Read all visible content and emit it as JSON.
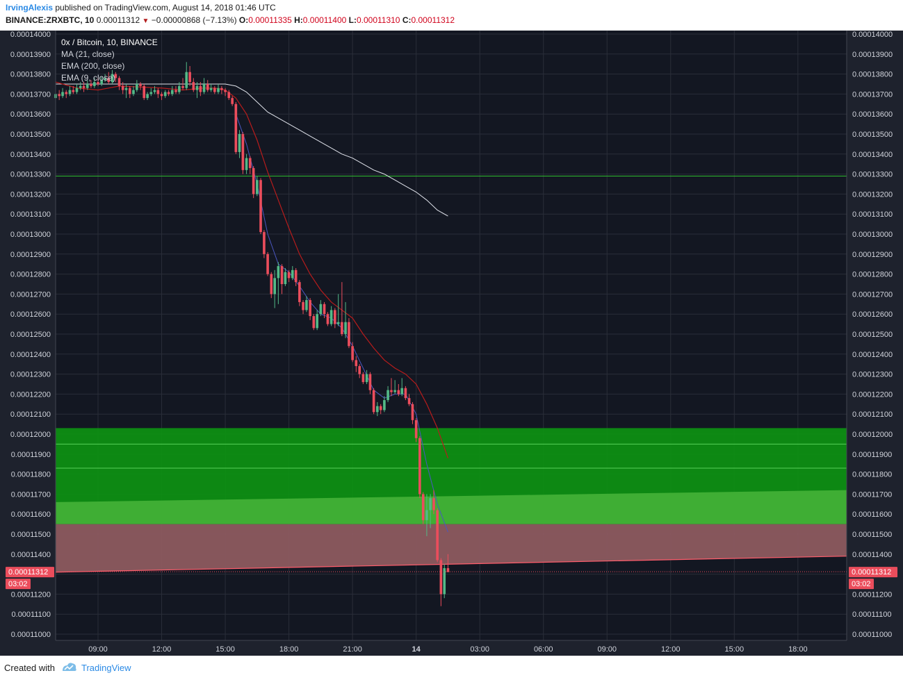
{
  "header": {
    "author": "IrvingAlexis",
    "published_text": "published on TradingView.com, August 14, 2018 01:46 UTC",
    "symbol": "BINANCE:ZRXBTC, 10",
    "last": "0.00011312",
    "change": "−0.00000868 (−7.13%)",
    "o_label": "O:",
    "o_value": "0.00011335",
    "h_label": "H:",
    "h_value": "0.00011400",
    "l_label": "L:",
    "l_value": "0.00011310",
    "c_label": "C:",
    "c_value": "0.00011312"
  },
  "legend": {
    "title": "0x / Bitcoin, 10, BINANCE",
    "ma": "MA (21, close)",
    "ema200": "EMA (200, close)",
    "ema9": "EMA (9, close)"
  },
  "price_tag": {
    "value": "0.00011312",
    "countdown": "03:02"
  },
  "footer": {
    "created": "Created with",
    "brand": "TradingView"
  },
  "colors": {
    "background": "#1e222d",
    "up": "#53b987",
    "down": "#eb4d5c",
    "ma21": "#b71c1c",
    "ema200": "#e0e3eb",
    "ema9": "#4a57c0",
    "green_zone": "#0d9312",
    "green_zone_light": "#42b036",
    "red_zone": "#8c5a5f",
    "h_line": "#2fbf2f"
  },
  "chart_data": {
    "type": "candlestick",
    "ylim": [
      0.00011,
      0.00014
    ],
    "y_ticks": [
      "0.00014000",
      "0.00013900",
      "0.00013800",
      "0.00013700",
      "0.00013600",
      "0.00013500",
      "0.00013400",
      "0.00013300",
      "0.00013200",
      "0.00013100",
      "0.00013000",
      "0.00012900",
      "0.00012800",
      "0.00012700",
      "0.00012600",
      "0.00012500",
      "0.00012400",
      "0.00012300",
      "0.00012200",
      "0.00012100",
      "0.00012000",
      "0.00011900",
      "0.00011800",
      "0.00011700",
      "0.00011600",
      "0.00011500",
      "0.00011400",
      "0.00011300",
      "0.00011200",
      "0.00011100",
      "0.00011000"
    ],
    "x_ticks": [
      "09:00",
      "12:00",
      "15:00",
      "18:00",
      "21:00",
      "14",
      "03:00",
      "06:00",
      "09:00",
      "12:00",
      "15:00",
      "18:00"
    ],
    "x_range_hours": [
      7,
      44.3
    ],
    "candles": [
      [
        7.0,
        0.0001368,
        0.000137,
        0.0001372,
        0.0001367
      ],
      [
        7.17,
        0.000137,
        0.0001369,
        0.0001372,
        0.0001367
      ],
      [
        7.33,
        0.0001369,
        0.0001371,
        0.0001373,
        0.0001368
      ],
      [
        7.5,
        0.0001371,
        0.000137,
        0.0001372,
        0.0001368
      ],
      [
        7.67,
        0.000137,
        0.0001372,
        0.0001374,
        0.0001369
      ],
      [
        7.83,
        0.0001372,
        0.0001371,
        0.0001374,
        0.000137
      ],
      [
        8.0,
        0.0001371,
        0.0001373,
        0.0001375,
        0.000137
      ],
      [
        8.17,
        0.0001373,
        0.0001374,
        0.0001376,
        0.0001372
      ],
      [
        8.33,
        0.0001374,
        0.0001373,
        0.0001376,
        0.0001371
      ],
      [
        8.5,
        0.0001373,
        0.0001375,
        0.0001377,
        0.0001372
      ],
      [
        8.67,
        0.0001375,
        0.0001374,
        0.0001377,
        0.0001373
      ],
      [
        8.83,
        0.0001374,
        0.0001376,
        0.0001378,
        0.0001373
      ],
      [
        9.0,
        0.0001376,
        0.0001375,
        0.0001378,
        0.0001374
      ],
      [
        9.17,
        0.0001375,
        0.0001377,
        0.0001379,
        0.0001374
      ],
      [
        9.33,
        0.0001377,
        0.0001378,
        0.000138,
        0.0001376
      ],
      [
        9.5,
        0.0001378,
        0.0001376,
        0.0001381,
        0.0001375
      ],
      [
        9.67,
        0.0001376,
        0.000138,
        0.0001382,
        0.0001375
      ],
      [
        9.83,
        0.000138,
        0.0001378,
        0.0001381,
        0.0001376
      ],
      [
        10.0,
        0.0001378,
        0.0001374,
        0.0001379,
        0.0001372
      ],
      [
        10.17,
        0.0001374,
        0.0001372,
        0.0001376,
        0.000137
      ],
      [
        10.33,
        0.0001372,
        0.0001373,
        0.0001375,
        0.0001368
      ],
      [
        10.5,
        0.0001373,
        0.000137,
        0.0001374,
        0.0001368
      ],
      [
        10.67,
        0.000137,
        0.0001372,
        0.0001374,
        0.0001369
      ],
      [
        10.83,
        0.0001372,
        0.0001375,
        0.0001377,
        0.0001371
      ],
      [
        11.0,
        0.0001375,
        0.0001374,
        0.0001376,
        0.0001372
      ],
      [
        11.17,
        0.0001374,
        0.0001368,
        0.0001375,
        0.0001367
      ],
      [
        11.33,
        0.0001368,
        0.000137,
        0.0001371,
        0.0001367
      ],
      [
        11.5,
        0.000137,
        0.0001371,
        0.0001373,
        0.0001369
      ],
      [
        11.67,
        0.0001371,
        0.0001372,
        0.0001374,
        0.000137
      ],
      [
        11.83,
        0.0001372,
        0.000137,
        0.0001373,
        0.0001368
      ],
      [
        12.0,
        0.000137,
        0.0001369,
        0.0001371,
        0.0001367
      ],
      [
        12.17,
        0.0001369,
        0.0001371,
        0.0001372,
        0.0001368
      ],
      [
        12.33,
        0.0001371,
        0.000137,
        0.0001372,
        0.0001369
      ],
      [
        12.5,
        0.000137,
        0.0001372,
        0.0001374,
        0.0001369
      ],
      [
        12.67,
        0.0001372,
        0.0001371,
        0.0001374,
        0.000137
      ],
      [
        12.83,
        0.0001371,
        0.0001374,
        0.0001376,
        0.000137
      ],
      [
        13.0,
        0.0001374,
        0.0001373,
        0.0001378,
        0.0001372
      ],
      [
        13.17,
        0.0001373,
        0.0001381,
        0.0001386,
        0.0001372
      ],
      [
        13.33,
        0.0001381,
        0.0001376,
        0.0001384,
        0.0001374
      ],
      [
        13.5,
        0.0001376,
        0.0001372,
        0.0001378,
        0.0001371
      ],
      [
        13.67,
        0.0001372,
        0.0001374,
        0.0001376,
        0.0001368
      ],
      [
        13.83,
        0.0001374,
        0.0001371,
        0.0001376,
        0.0001369
      ],
      [
        14.0,
        0.0001371,
        0.0001375,
        0.0001378,
        0.000137
      ],
      [
        14.17,
        0.0001375,
        0.0001372,
        0.0001377,
        0.0001371
      ],
      [
        14.33,
        0.0001372,
        0.0001373,
        0.0001375,
        0.0001371
      ],
      [
        14.5,
        0.0001373,
        0.0001371,
        0.0001374,
        0.000137
      ],
      [
        14.67,
        0.0001371,
        0.0001373,
        0.0001375,
        0.000137
      ],
      [
        14.83,
        0.0001373,
        0.0001372,
        0.0001374,
        0.000137
      ],
      [
        15.0,
        0.0001372,
        0.0001371,
        0.0001373,
        0.0001369
      ],
      [
        15.17,
        0.0001371,
        0.0001368,
        0.0001372,
        0.0001367
      ],
      [
        15.33,
        0.0001368,
        0.0001365,
        0.0001369,
        0.0001364
      ],
      [
        15.5,
        0.0001365,
        0.0001341,
        0.0001366,
        0.000134
      ],
      [
        15.67,
        0.0001341,
        0.000135,
        0.0001352,
        0.0001338
      ],
      [
        15.83,
        0.000135,
        0.0001332,
        0.0001351,
        0.000133
      ],
      [
        16.0,
        0.0001332,
        0.0001338,
        0.000134,
        0.000133
      ],
      [
        16.17,
        0.0001338,
        0.0001333,
        0.0001339,
        0.000133
      ],
      [
        16.33,
        0.0001333,
        0.000132,
        0.0001334,
        0.0001318
      ],
      [
        16.5,
        0.000132,
        0.0001327,
        0.0001329,
        0.0001319
      ],
      [
        16.67,
        0.0001327,
        0.0001301,
        0.0001328,
        0.00013
      ],
      [
        16.83,
        0.0001301,
        0.000129,
        0.0001302,
        0.0001288
      ],
      [
        17.0,
        0.000129,
        0.000128,
        0.0001291,
        0.0001279
      ],
      [
        17.17,
        0.000128,
        0.000127,
        0.0001281,
        0.0001268
      ],
      [
        17.33,
        0.000127,
        0.0001278,
        0.0001282,
        0.0001263
      ],
      [
        17.5,
        0.0001278,
        0.0001284,
        0.0001286,
        0.0001265
      ],
      [
        17.67,
        0.0001284,
        0.0001275,
        0.0001285,
        0.000127
      ],
      [
        17.83,
        0.0001275,
        0.0001281,
        0.0001283,
        0.0001274
      ],
      [
        18.0,
        0.0001281,
        0.0001278,
        0.0001282,
        0.0001276
      ],
      [
        18.17,
        0.0001278,
        0.0001282,
        0.0001284,
        0.0001277
      ],
      [
        18.33,
        0.0001282,
        0.0001276,
        0.0001283,
        0.0001274
      ],
      [
        18.5,
        0.0001276,
        0.0001266,
        0.0001277,
        0.0001264
      ],
      [
        18.67,
        0.0001266,
        0.0001262,
        0.0001267,
        0.000126
      ],
      [
        18.83,
        0.0001262,
        0.0001267,
        0.0001269,
        0.0001261
      ],
      [
        19.0,
        0.0001267,
        0.0001259,
        0.0001268,
        0.0001257
      ],
      [
        19.17,
        0.0001259,
        0.0001253,
        0.000126,
        0.0001252
      ],
      [
        19.33,
        0.0001253,
        0.000126,
        0.0001262,
        0.0001252
      ],
      [
        19.5,
        0.000126,
        0.0001265,
        0.0001267,
        0.0001259
      ],
      [
        19.67,
        0.0001265,
        0.000126,
        0.0001266,
        0.0001258
      ],
      [
        19.83,
        0.000126,
        0.0001255,
        0.0001261,
        0.0001254
      ],
      [
        20.0,
        0.0001255,
        0.0001262,
        0.0001264,
        0.0001254
      ],
      [
        20.17,
        0.0001262,
        0.0001255,
        0.0001263,
        0.0001253
      ],
      [
        20.33,
        0.0001255,
        0.0001256,
        0.000127,
        0.0001254
      ],
      [
        20.5,
        0.0001256,
        0.000125,
        0.0001276,
        0.0001249
      ],
      [
        20.67,
        0.000125,
        0.0001256,
        0.0001266,
        0.0001248
      ],
      [
        20.83,
        0.0001256,
        0.0001244,
        0.0001258,
        0.0001243
      ],
      [
        21.0,
        0.0001244,
        0.0001237,
        0.0001246,
        0.0001236
      ],
      [
        21.17,
        0.0001237,
        0.0001234,
        0.0001239,
        0.0001231
      ],
      [
        21.33,
        0.0001234,
        0.000123,
        0.0001235,
        0.0001228
      ],
      [
        21.5,
        0.000123,
        0.0001226,
        0.0001231,
        0.0001225
      ],
      [
        21.67,
        0.0001226,
        0.000123,
        0.0001232,
        0.0001225
      ],
      [
        21.83,
        0.000123,
        0.0001222,
        0.0001231,
        0.000122
      ],
      [
        22.0,
        0.0001222,
        0.0001211,
        0.0001223,
        0.000121
      ],
      [
        22.17,
        0.0001211,
        0.0001214,
        0.0001216,
        0.0001209
      ],
      [
        22.33,
        0.0001214,
        0.0001212,
        0.0001215,
        0.000121
      ],
      [
        22.5,
        0.0001212,
        0.0001217,
        0.0001219,
        0.0001211
      ],
      [
        22.67,
        0.0001217,
        0.0001222,
        0.0001224,
        0.0001216
      ],
      [
        22.83,
        0.0001222,
        0.0001221,
        0.0001228,
        0.0001219
      ],
      [
        23.0,
        0.0001221,
        0.0001222,
        0.0001227,
        0.000122
      ],
      [
        23.17,
        0.0001222,
        0.000122,
        0.0001225,
        0.0001219
      ],
      [
        23.33,
        0.000122,
        0.0001223,
        0.0001228,
        0.0001219
      ],
      [
        23.5,
        0.0001223,
        0.0001218,
        0.0001224,
        0.0001217
      ],
      [
        23.67,
        0.0001218,
        0.0001215,
        0.000122,
        0.0001214
      ],
      [
        23.83,
        0.0001215,
        0.0001207,
        0.0001216,
        0.0001205
      ],
      [
        24.0,
        0.0001207,
        0.0001198,
        0.0001208,
        0.0001196
      ],
      [
        24.17,
        0.0001198,
        0.000117,
        0.0001199,
        0.0001168
      ],
      [
        24.33,
        0.000117,
        0.0001157,
        0.0001171,
        0.0001155
      ],
      [
        24.5,
        0.0001157,
        0.0001162,
        0.000117,
        0.0001149
      ],
      [
        24.67,
        0.0001162,
        0.0001168,
        0.000117,
        0.0001153
      ],
      [
        24.83,
        0.0001168,
        0.0001162,
        0.0001172,
        0.000116
      ],
      [
        25.0,
        0.0001162,
        0.0001137,
        0.0001163,
        0.0001136
      ],
      [
        25.17,
        0.0001137,
        0.000112,
        0.0001138,
        0.0001114
      ],
      [
        25.33,
        0.000112,
        0.0001133,
        0.0001135,
        0.0001118
      ],
      [
        25.5,
        0.0001133,
        0.0001131,
        0.000114,
        0.0001131
      ]
    ],
    "ma21": [
      [
        7.0,
        0.0001376
      ],
      [
        8.0,
        0.0001373
      ],
      [
        9.0,
        0.0001372
      ],
      [
        10.0,
        0.0001374
      ],
      [
        12.0,
        0.0001373
      ],
      [
        13.0,
        0.0001372
      ],
      [
        14.0,
        0.0001373
      ],
      [
        14.5,
        0.0001373
      ],
      [
        15.0,
        0.0001372
      ],
      [
        15.5,
        0.0001368
      ],
      [
        16.0,
        0.000136
      ],
      [
        16.5,
        0.0001347
      ],
      [
        17.0,
        0.0001331
      ],
      [
        17.5,
        0.0001317
      ],
      [
        18.0,
        0.0001303
      ],
      [
        18.5,
        0.000129
      ],
      [
        19.0,
        0.000128
      ],
      [
        19.5,
        0.0001272
      ],
      [
        20.0,
        0.0001266
      ],
      [
        20.5,
        0.0001262
      ],
      [
        21.0,
        0.0001258
      ],
      [
        21.5,
        0.000125
      ],
      [
        22.0,
        0.0001243
      ],
      [
        22.5,
        0.0001237
      ],
      [
        23.0,
        0.0001233
      ],
      [
        23.5,
        0.000123
      ],
      [
        24.0,
        0.0001225
      ],
      [
        24.5,
        0.0001215
      ],
      [
        25.0,
        0.0001203
      ],
      [
        25.5,
        0.0001188
      ]
    ],
    "ema200": [
      [
        7.0,
        0.0001375
      ],
      [
        8.0,
        0.0001375
      ],
      [
        9.0,
        0.0001375
      ],
      [
        10.0,
        0.0001375
      ],
      [
        12.0,
        0.0001375
      ],
      [
        13.0,
        0.0001375
      ],
      [
        14.0,
        0.0001375
      ],
      [
        14.5,
        0.0001375
      ],
      [
        15.0,
        0.0001375
      ],
      [
        15.5,
        0.0001374
      ],
      [
        16.0,
        0.0001371
      ],
      [
        16.5,
        0.0001366
      ],
      [
        17.0,
        0.0001361
      ],
      [
        17.5,
        0.0001358
      ],
      [
        18.0,
        0.0001355
      ],
      [
        18.5,
        0.0001352
      ],
      [
        19.0,
        0.0001349
      ],
      [
        19.5,
        0.0001346
      ],
      [
        20.0,
        0.0001343
      ],
      [
        20.5,
        0.000134
      ],
      [
        21.0,
        0.0001338
      ],
      [
        21.5,
        0.0001335
      ],
      [
        22.0,
        0.0001332
      ],
      [
        22.5,
        0.000133
      ],
      [
        23.0,
        0.0001327
      ],
      [
        23.5,
        0.0001324
      ],
      [
        24.0,
        0.0001321
      ],
      [
        24.5,
        0.0001317
      ],
      [
        25.0,
        0.0001312
      ],
      [
        25.5,
        0.0001309
      ]
    ],
    "ema9": [
      [
        15.5,
        0.000136
      ],
      [
        16.0,
        0.0001345
      ],
      [
        16.5,
        0.0001325
      ],
      [
        17.0,
        0.00013
      ],
      [
        17.5,
        0.0001285
      ],
      [
        18.0,
        0.0001281
      ],
      [
        18.5,
        0.0001274
      ],
      [
        19.0,
        0.0001266
      ],
      [
        19.5,
        0.000126
      ],
      [
        20.0,
        0.0001258
      ],
      [
        20.5,
        0.0001253
      ],
      [
        21.0,
        0.0001244
      ],
      [
        21.5,
        0.0001233
      ],
      [
        22.0,
        0.0001222
      ],
      [
        22.5,
        0.0001218
      ],
      [
        23.0,
        0.000122
      ],
      [
        23.5,
        0.000122
      ],
      [
        24.0,
        0.000121
      ],
      [
        24.5,
        0.0001185
      ],
      [
        25.0,
        0.0001165
      ],
      [
        25.5,
        0.0001151
      ]
    ],
    "horizontal_line": 0.0001329,
    "green_zone": [
      0.0001155,
      0.0001203
    ],
    "green_zone_lines": [
      0.0001195,
      0.0001183
    ],
    "light_trend_top": {
      "from": [
        7.0,
        0.0001166
      ],
      "to": [
        44.3,
        0.0001172
      ]
    },
    "red_trend_bottom": {
      "from": [
        7.0,
        0.0001131
      ],
      "to": [
        44.3,
        0.0001139
      ]
    },
    "last_price": 0.00011312
  }
}
